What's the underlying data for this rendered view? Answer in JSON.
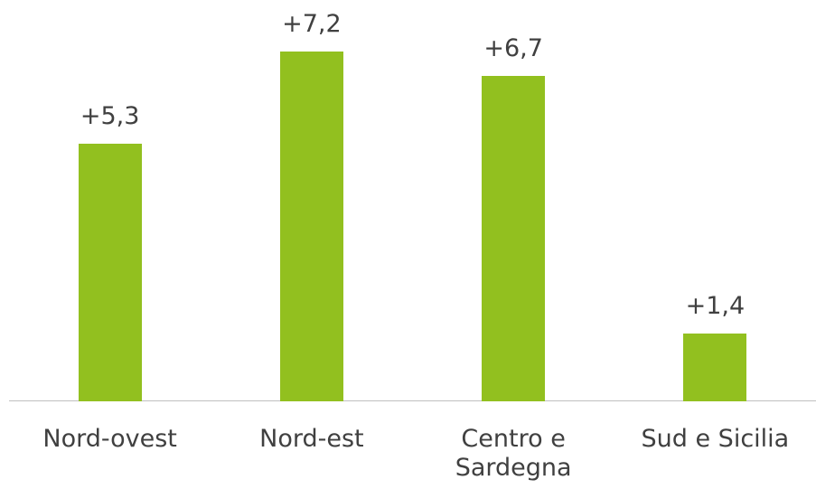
{
  "chart_data": {
    "type": "bar",
    "categories": [
      "Nord-ovest",
      "Nord-est",
      "Centro e Sardegna",
      "Sud e Sicilia"
    ],
    "values": [
      5.3,
      7.2,
      6.7,
      1.4
    ],
    "value_labels": [
      "+5,3",
      "+7,2",
      "+6,7",
      "+1,4"
    ],
    "color": "#92c01f"
  }
}
